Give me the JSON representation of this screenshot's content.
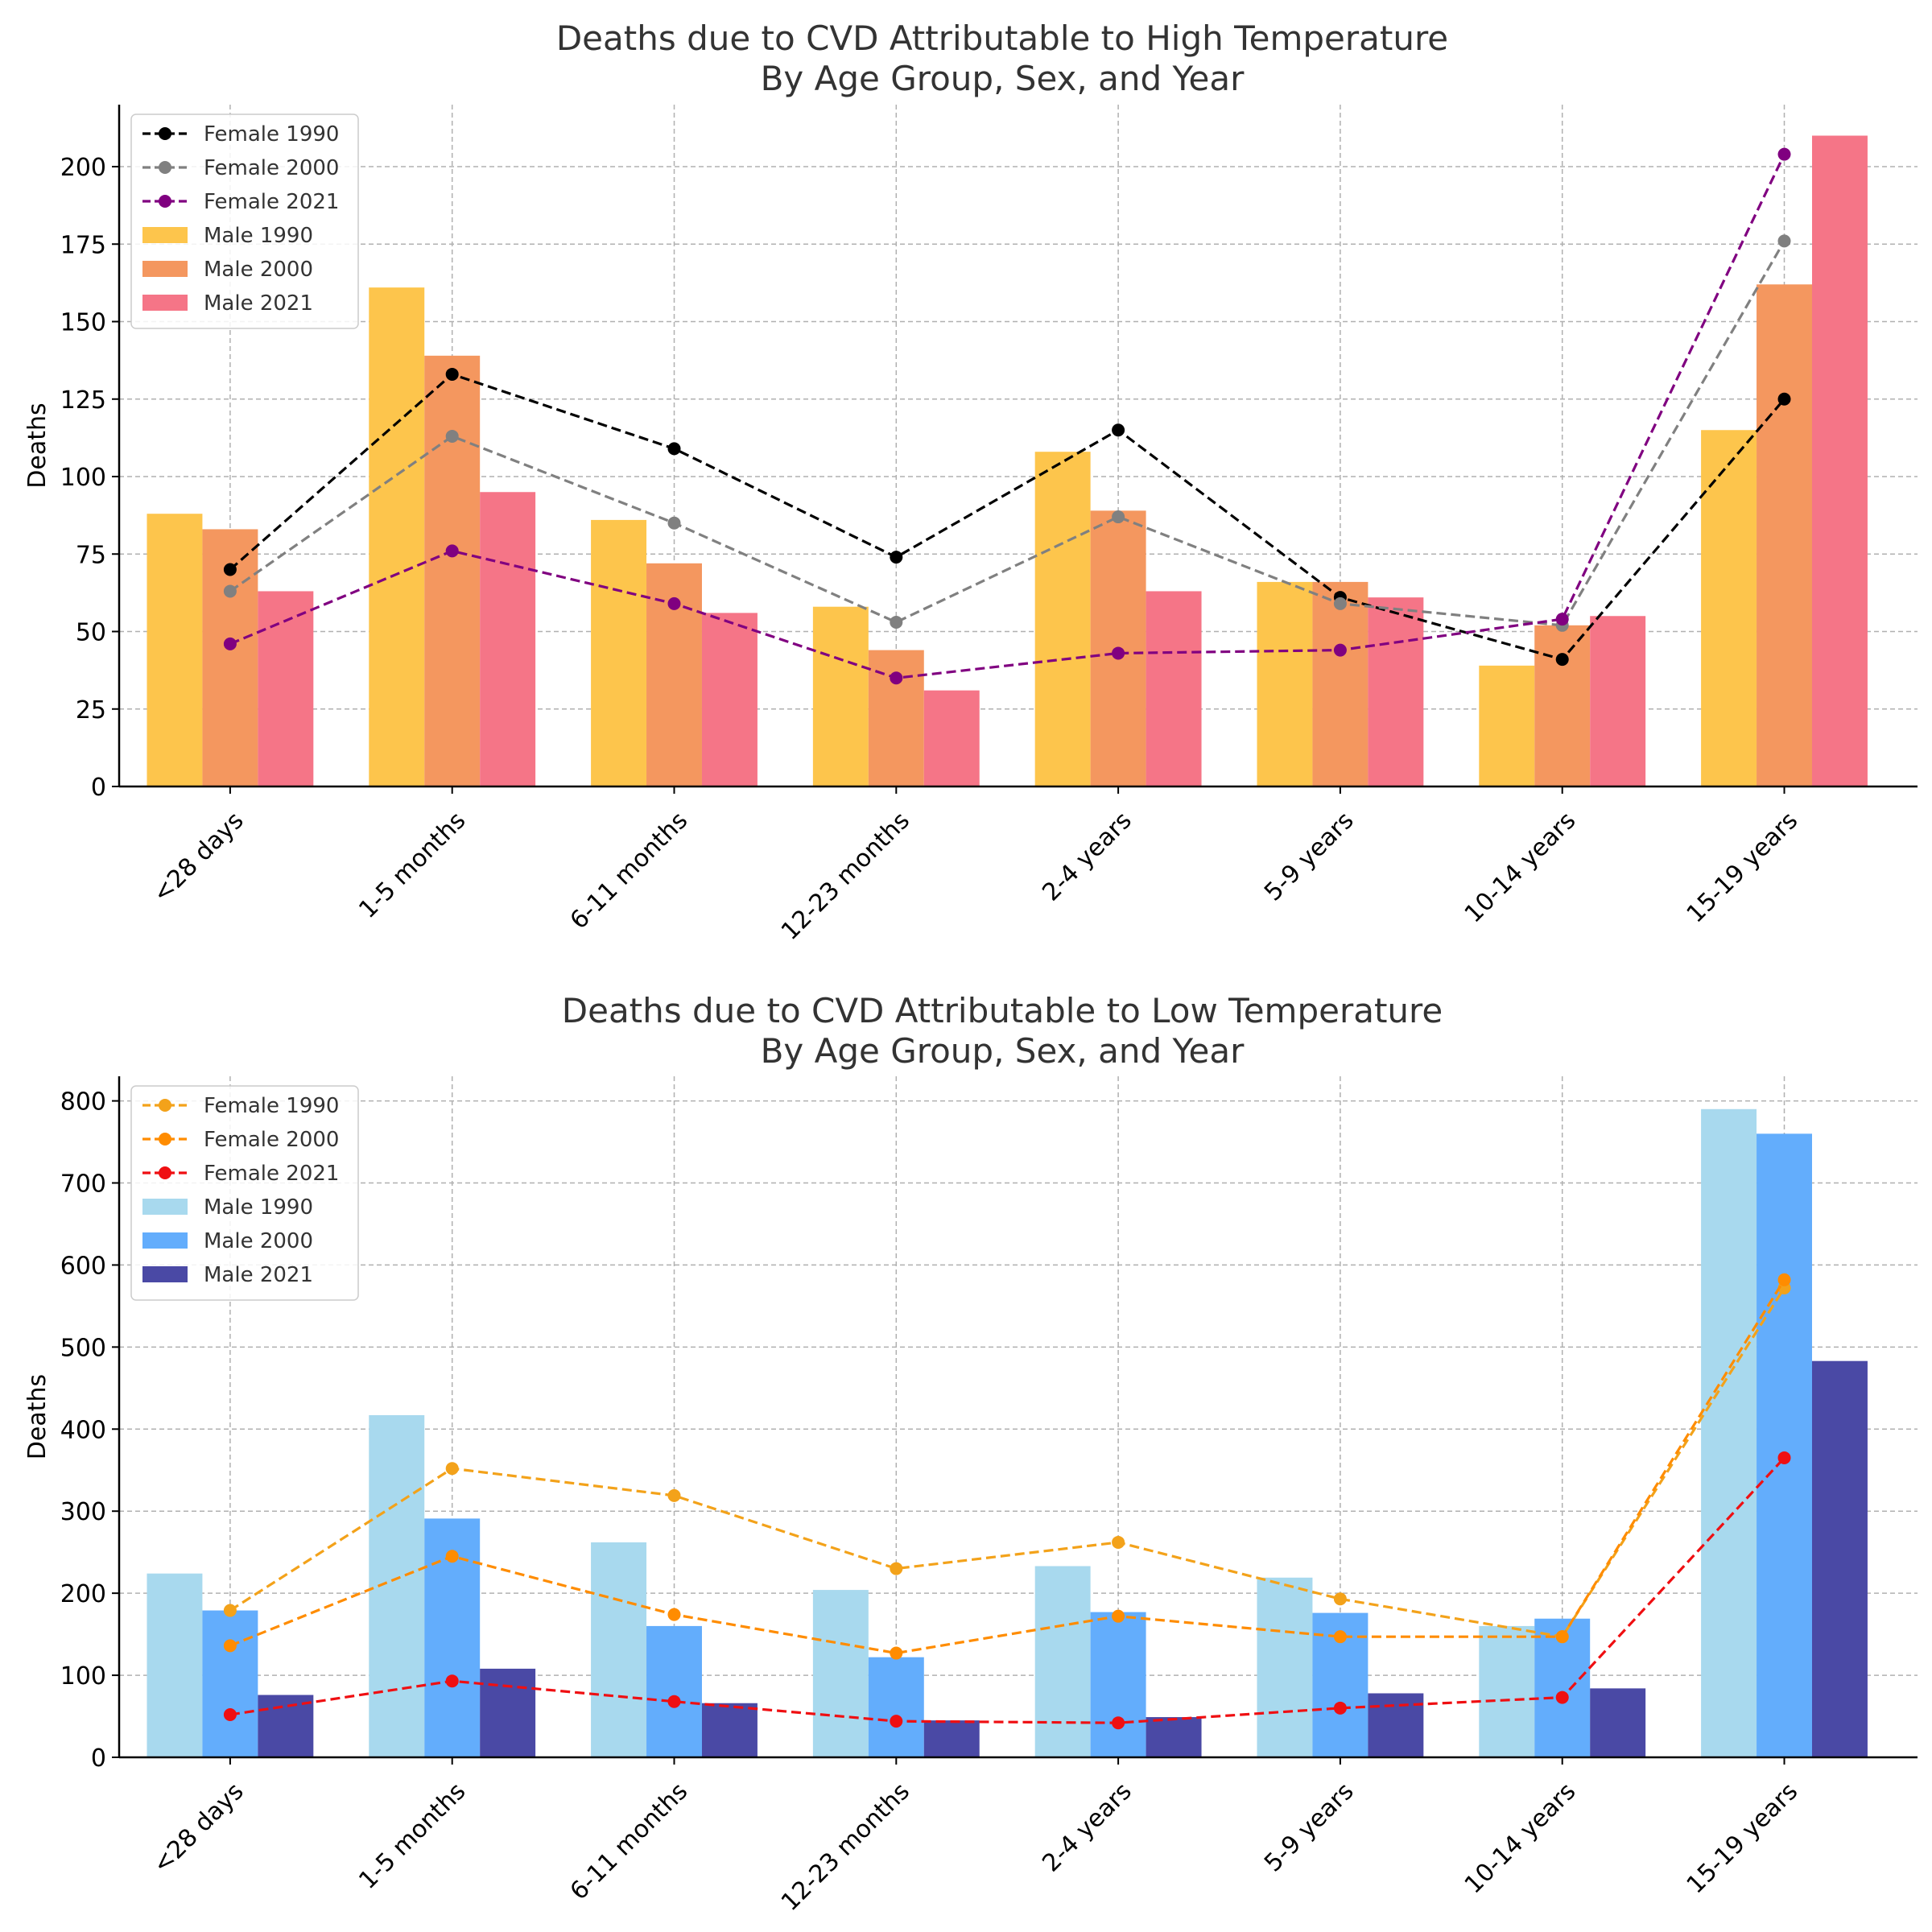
{
  "chart_data": [
    {
      "type": "bar",
      "title": "Deaths due to CVD Attributable to High Temperature",
      "subtitle": "By Age Group, Sex, and Year",
      "xlabel": "",
      "ylabel": "Deaths",
      "ylim": [
        0,
        220
      ],
      "yticks": [
        0,
        25,
        50,
        75,
        100,
        125,
        150,
        175,
        200
      ],
      "grid": true,
      "legend_position": "upper-left",
      "categories": [
        "<28 days",
        "1-5 months",
        "6-11 months",
        "12-23 months",
        "2-4 years",
        "5-9 years",
        "10-14 years",
        "15-19 years"
      ],
      "bar_series": [
        {
          "name": "Male 1990",
          "color": "#fdc54c",
          "values": [
            88,
            161,
            86,
            58,
            108,
            66,
            39,
            115
          ]
        },
        {
          "name": "Male 2000",
          "color": "#f4975f",
          "values": [
            83,
            139,
            72,
            44,
            89,
            66,
            52,
            162
          ]
        },
        {
          "name": "Male 2021",
          "color": "#f57587",
          "values": [
            63,
            95,
            56,
            31,
            63,
            61,
            55,
            210
          ]
        }
      ],
      "line_series": [
        {
          "name": "Female 1990",
          "color": "#000000",
          "values": [
            70,
            133,
            109,
            74,
            115,
            61,
            41,
            125
          ]
        },
        {
          "name": "Female 2000",
          "color": "#808080",
          "values": [
            63,
            113,
            85,
            53,
            87,
            59,
            52,
            176
          ]
        },
        {
          "name": "Female 2021",
          "color": "#800080",
          "values": [
            46,
            76,
            59,
            35,
            43,
            44,
            54,
            204
          ]
        }
      ]
    },
    {
      "type": "bar",
      "title": "Deaths due to CVD Attributable to Low Temperature",
      "subtitle": "By Age Group, Sex, and Year",
      "xlabel": "",
      "ylabel": "Deaths",
      "ylim": [
        0,
        830
      ],
      "yticks": [
        0,
        100,
        200,
        300,
        400,
        500,
        600,
        700,
        800
      ],
      "grid": true,
      "legend_position": "upper-left",
      "categories": [
        "<28 days",
        "1-5 months",
        "6-11 months",
        "12-23 months",
        "2-4 years",
        "5-9 years",
        "10-14 years",
        "15-19 years"
      ],
      "bar_series": [
        {
          "name": "Male 1990",
          "color": "#a8d9ee",
          "values": [
            224,
            417,
            262,
            204,
            233,
            219,
            160,
            790
          ]
        },
        {
          "name": "Male 2000",
          "color": "#63adfc",
          "values": [
            179,
            291,
            160,
            122,
            177,
            176,
            169,
            760
          ]
        },
        {
          "name": "Male 2021",
          "color": "#4a49a5",
          "values": [
            76,
            108,
            66,
            45,
            49,
            78,
            84,
            483
          ]
        }
      ],
      "line_series": [
        {
          "name": "Female 1990",
          "color": "#f3a21a",
          "values": [
            179,
            352,
            319,
            230,
            262,
            193,
            147,
            572
          ]
        },
        {
          "name": "Female 2000",
          "color": "#ff8c00",
          "values": [
            136,
            245,
            174,
            127,
            172,
            147,
            147,
            582
          ]
        },
        {
          "name": "Female 2021",
          "color": "#ef0f12",
          "values": [
            52,
            93,
            68,
            44,
            42,
            60,
            73,
            365
          ]
        }
      ]
    }
  ]
}
